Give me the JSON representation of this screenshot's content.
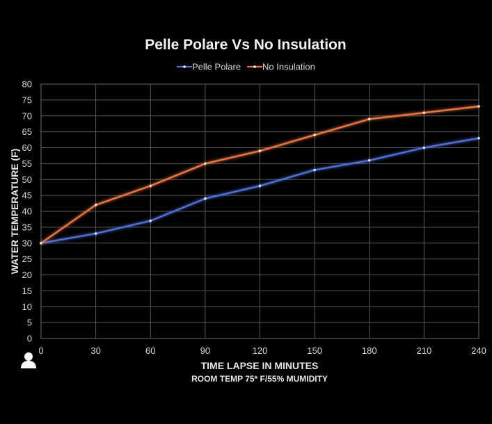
{
  "chart_data": {
    "type": "line",
    "title": "Pelle Polare Vs  No Insulation",
    "xlabel": "TIME LAPSE IN MINUTES",
    "xlabel_sub": "ROOM TEMP 75* F/55% MUMIDITY",
    "ylabel": "WATER TEMPERATURE (F)",
    "x": [
      0,
      30,
      60,
      90,
      120,
      150,
      180,
      210,
      240
    ],
    "x_tick_labels": [
      "0",
      "30",
      "60",
      "90",
      "120",
      "150",
      "180",
      "210",
      "240"
    ],
    "y_ticks": [
      0,
      5,
      10,
      15,
      20,
      25,
      30,
      35,
      40,
      45,
      50,
      55,
      60,
      65,
      70,
      75,
      80
    ],
    "xlim": [
      0,
      240
    ],
    "ylim": [
      0,
      80
    ],
    "grid": true,
    "legend": "top-center",
    "series": [
      {
        "name": "Pelle Polare",
        "color": "#4f6fd6",
        "values": [
          30,
          33,
          37,
          44,
          48,
          53,
          56,
          60,
          63
        ]
      },
      {
        "name": "No Insulation",
        "color": "#e8763f",
        "values": [
          30,
          42,
          48,
          55,
          59,
          64,
          69,
          71,
          73
        ]
      }
    ]
  },
  "overlay": {
    "icon": "person-icon"
  }
}
